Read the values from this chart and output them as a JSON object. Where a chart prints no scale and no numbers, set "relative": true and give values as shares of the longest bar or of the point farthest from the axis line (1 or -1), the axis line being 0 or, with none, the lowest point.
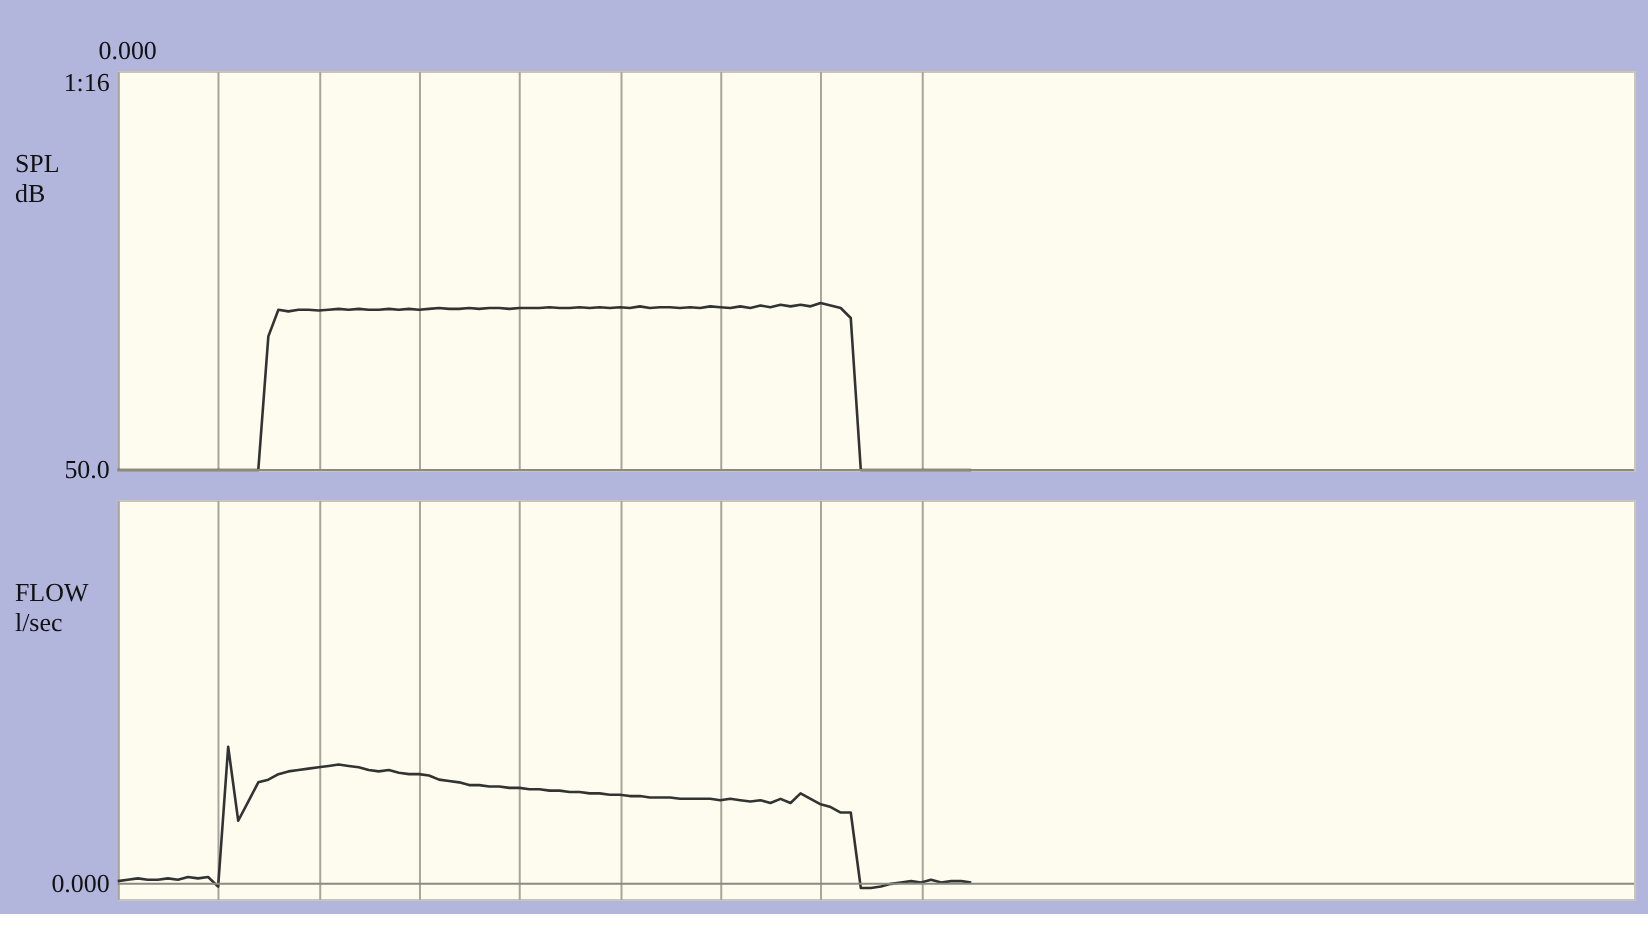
{
  "chart_data": [
    {
      "type": "line",
      "ylabel": "SPL\ndB",
      "relative": true,
      "grid": "x",
      "line_style": "solid",
      "ref_lines": [
        {
          "axis": "y",
          "value": 0,
          "color": "#8c8a80"
        }
      ],
      "annotations": [
        "0.000",
        "1:16",
        "50.0"
      ],
      "categories": [
        null,
        null,
        null,
        null,
        null,
        null,
        null,
        null,
        null,
        null,
        null,
        null,
        null,
        null,
        null,
        null,
        null,
        null,
        null,
        null,
        null,
        null,
        null,
        null,
        null,
        null,
        null,
        null,
        null,
        null,
        null,
        null,
        null,
        null,
        null,
        null,
        null,
        null,
        null,
        null,
        null,
        null,
        null,
        null,
        null,
        null,
        null,
        null,
        null,
        null,
        null,
        null,
        null,
        null,
        null,
        null,
        null,
        null,
        null,
        null,
        null,
        null,
        null,
        null,
        null,
        null,
        null,
        null,
        null,
        null,
        null,
        null,
        null,
        null,
        null,
        null,
        null,
        null,
        null,
        null,
        null,
        null,
        null,
        null,
        null,
        null,
        null,
        null,
        null,
        null,
        null,
        null,
        null,
        null,
        null,
        null,
        null,
        null,
        null,
        null,
        null,
        null,
        null,
        null,
        null,
        null,
        null,
        null,
        null,
        null,
        null,
        null,
        null,
        null,
        null,
        null,
        null,
        null,
        null,
        null,
        null,
        null,
        null,
        null,
        null,
        null,
        null,
        null,
        null,
        null,
        null,
        null,
        null,
        null,
        null,
        null,
        null,
        null,
        null,
        null,
        null,
        null,
        null,
        null,
        null,
        null,
        null,
        null,
        null,
        null,
        null,
        null
      ],
      "series": [
        {
          "color": "#333333",
          "values": [
            0,
            0,
            0,
            0,
            0,
            0,
            0,
            0,
            0,
            0,
            0,
            0,
            0,
            0,
            0,
            0.8,
            0.96,
            0.95,
            0.96,
            0.96,
            0.955,
            0.96,
            0.965,
            0.96,
            0.965,
            0.96,
            0.96,
            0.965,
            0.96,
            0.965,
            0.96,
            0.965,
            0.97,
            0.965,
            0.965,
            0.97,
            0.965,
            0.97,
            0.97,
            0.965,
            0.97,
            0.97,
            0.97,
            0.975,
            0.97,
            0.97,
            0.975,
            0.97,
            0.975,
            0.97,
            0.975,
            0.97,
            0.98,
            0.97,
            0.975,
            0.975,
            0.97,
            0.975,
            0.97,
            0.98,
            0.975,
            0.97,
            0.98,
            0.97,
            0.985,
            0.975,
            0.99,
            0.98,
            0.99,
            0.98,
            1.0,
            0.985,
            0.97,
            0.91,
            0,
            0,
            0,
            0,
            0,
            0,
            0,
            0,
            0,
            0,
            0,
            0,
            null,
            null,
            null,
            null,
            null,
            null,
            null,
            null,
            null,
            null,
            null,
            null,
            null,
            null,
            null,
            null,
            null,
            null,
            null,
            null,
            null,
            null,
            null,
            null,
            null,
            null,
            null,
            null,
            null,
            null,
            null,
            null,
            null,
            null,
            null,
            null,
            null,
            null,
            null,
            null,
            null,
            null,
            null,
            null,
            null,
            null,
            null,
            null,
            null,
            null,
            null,
            null,
            null,
            null,
            null,
            null,
            null,
            null,
            null,
            null,
            null,
            null,
            null,
            null,
            null,
            null
          ]
        }
      ]
    },
    {
      "type": "line",
      "ylabel": "FLOW\nl/sec",
      "relative": true,
      "grid": "x",
      "line_style": "solid",
      "ref_lines": [
        {
          "axis": "y",
          "value": 0,
          "color": "#8c8a80"
        }
      ],
      "annotations": [
        "0.000"
      ],
      "categories": [
        null,
        null,
        null,
        null,
        null,
        null,
        null,
        null,
        null,
        null,
        null,
        null,
        null,
        null,
        null,
        null,
        null,
        null,
        null,
        null,
        null,
        null,
        null,
        null,
        null,
        null,
        null,
        null,
        null,
        null,
        null,
        null,
        null,
        null,
        null,
        null,
        null,
        null,
        null,
        null,
        null,
        null,
        null,
        null,
        null,
        null,
        null,
        null,
        null,
        null,
        null,
        null,
        null,
        null,
        null,
        null,
        null,
        null,
        null,
        null,
        null,
        null,
        null,
        null,
        null,
        null,
        null,
        null,
        null,
        null,
        null,
        null,
        null,
        null,
        null,
        null,
        null,
        null,
        null,
        null,
        null,
        null,
        null,
        null,
        null,
        null,
        null,
        null,
        null,
        null,
        null,
        null,
        null,
        null,
        null,
        null,
        null,
        null,
        null,
        null,
        null,
        null,
        null,
        null,
        null,
        null,
        null,
        null,
        null,
        null,
        null,
        null,
        null,
        null,
        null,
        null,
        null,
        null,
        null,
        null,
        null,
        null,
        null,
        null,
        null,
        null,
        null,
        null,
        null,
        null,
        null,
        null,
        null,
        null,
        null,
        null,
        null,
        null,
        null,
        null,
        null,
        null,
        null,
        null,
        null,
        null,
        null,
        null,
        null,
        null,
        null,
        null
      ],
      "series": [
        {
          "color": "#333333",
          "values": [
            0.02,
            0.03,
            0.04,
            0.03,
            0.03,
            0.04,
            0.03,
            0.05,
            0.04,
            0.05,
            -0.02,
            1.0,
            0.46,
            0.6,
            0.74,
            0.76,
            0.8,
            0.82,
            0.83,
            0.84,
            0.85,
            0.86,
            0.87,
            0.86,
            0.85,
            0.83,
            0.82,
            0.83,
            0.81,
            0.8,
            0.8,
            0.79,
            0.76,
            0.75,
            0.74,
            0.72,
            0.72,
            0.71,
            0.71,
            0.7,
            0.7,
            0.69,
            0.69,
            0.68,
            0.68,
            0.67,
            0.67,
            0.66,
            0.66,
            0.65,
            0.65,
            0.64,
            0.64,
            0.63,
            0.63,
            0.63,
            0.62,
            0.62,
            0.62,
            0.62,
            0.61,
            0.62,
            0.61,
            0.6,
            0.61,
            0.59,
            0.62,
            0.59,
            0.66,
            0.62,
            0.58,
            0.56,
            0.52,
            0.52,
            -0.03,
            -0.03,
            -0.02,
            0,
            0.01,
            0.02,
            0.01,
            0.03,
            0.01,
            0.02,
            0.02,
            0.01,
            null,
            null,
            null,
            null,
            null,
            null,
            null,
            null,
            null,
            null,
            null,
            null,
            null,
            null,
            null,
            null,
            null,
            null,
            null,
            null,
            null,
            null,
            null,
            null,
            null,
            null,
            null,
            null,
            null,
            null,
            null,
            null,
            null,
            null,
            null,
            null,
            null,
            null,
            null,
            null,
            null,
            null,
            null,
            null,
            null,
            null,
            null,
            null,
            null,
            null,
            null,
            null,
            null,
            null,
            null,
            null,
            null,
            null,
            null,
            null,
            null,
            null,
            null,
            null,
            null,
            null
          ]
        }
      ]
    }
  ]
}
